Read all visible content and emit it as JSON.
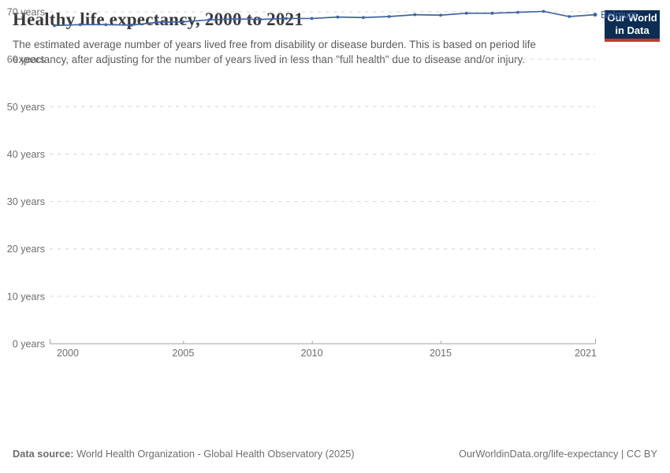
{
  "header": {
    "title": "Healthy life expectancy, 2000 to 2021",
    "subtitle": "The estimated average number of years lived free from disability or disease burden. This is based on period life expectancy, after adjusting for the number of years lived in less than \"full health\" due to disease and/or injury.",
    "logo": {
      "line1": "Our World",
      "line2": "in Data",
      "bg_color": "#0d2d52",
      "stripe_color": "#c1392e"
    }
  },
  "chart_data": {
    "type": "line",
    "title": "Healthy life expectancy, 2000 to 2021",
    "x": [
      2000,
      2001,
      2002,
      2003,
      2004,
      2005,
      2006,
      2007,
      2008,
      2009,
      2010,
      2011,
      2012,
      2013,
      2014,
      2015,
      2016,
      2017,
      2018,
      2019,
      2020,
      2021
    ],
    "series": [
      {
        "name": "Belgium",
        "color": "#4165a3",
        "values": [
          67.1,
          67.3,
          67.3,
          67.2,
          67.8,
          67.9,
          68.3,
          68.5,
          68.4,
          68.6,
          68.6,
          68.9,
          68.8,
          69.0,
          69.4,
          69.3,
          69.7,
          69.7,
          69.9,
          70.1,
          69.0,
          69.4
        ]
      }
    ],
    "xlabel": "",
    "ylabel": "",
    "xlim": [
      2000,
      2021
    ],
    "ylim": [
      0,
      70
    ],
    "yticks": [
      0,
      10,
      20,
      30,
      40,
      50,
      60,
      70
    ],
    "ytick_suffix": " years",
    "xticks": [
      2000,
      2005,
      2010,
      2015,
      2021
    ],
    "grid": "horizontal-dashed",
    "legend_position": "end-of-line-label"
  },
  "footer": {
    "source_label": "Data source:",
    "source_text": " World Health Organization - Global Health Observatory (2025)",
    "right_text": "OurWorldinData.org/life-expectancy | CC BY"
  }
}
